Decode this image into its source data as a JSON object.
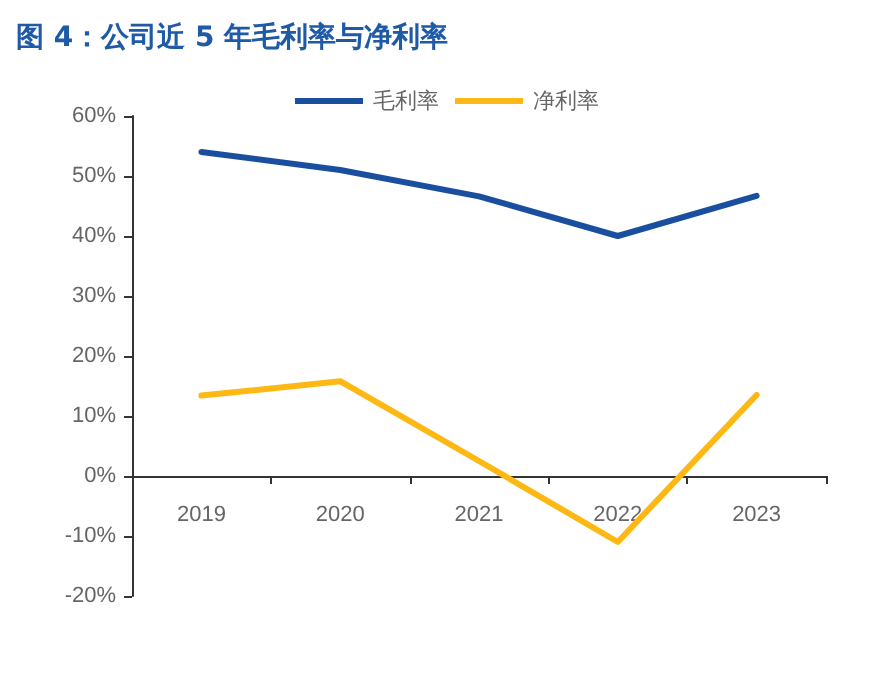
{
  "chart_data": {
    "type": "line",
    "title": "图 4：公司近 5 年毛利率与净利率",
    "categories": [
      "2019",
      "2020",
      "2021",
      "2022",
      "2023"
    ],
    "series": [
      {
        "name": "毛利率",
        "color": "#1a4fa0",
        "values": [
          54,
          51,
          46.6,
          40,
          46.7
        ]
      },
      {
        "name": "净利率",
        "color": "#fdb813",
        "values": [
          13.4,
          15.8,
          2.5,
          -11,
          13.5
        ]
      }
    ],
    "ylim": [
      -20,
      60
    ],
    "yticks": [
      {
        "value": -20,
        "label": "-20%"
      },
      {
        "value": -10,
        "label": "-10%"
      },
      {
        "value": 0,
        "label": "0%"
      },
      {
        "value": 10,
        "label": "10%"
      },
      {
        "value": 20,
        "label": "20%"
      },
      {
        "value": 30,
        "label": "30%"
      },
      {
        "value": 40,
        "label": "40%"
      },
      {
        "value": 50,
        "label": "50%"
      },
      {
        "value": 60,
        "label": "60%"
      }
    ],
    "grid": false,
    "legend": "top",
    "marker": "none",
    "line_style": "solid"
  }
}
